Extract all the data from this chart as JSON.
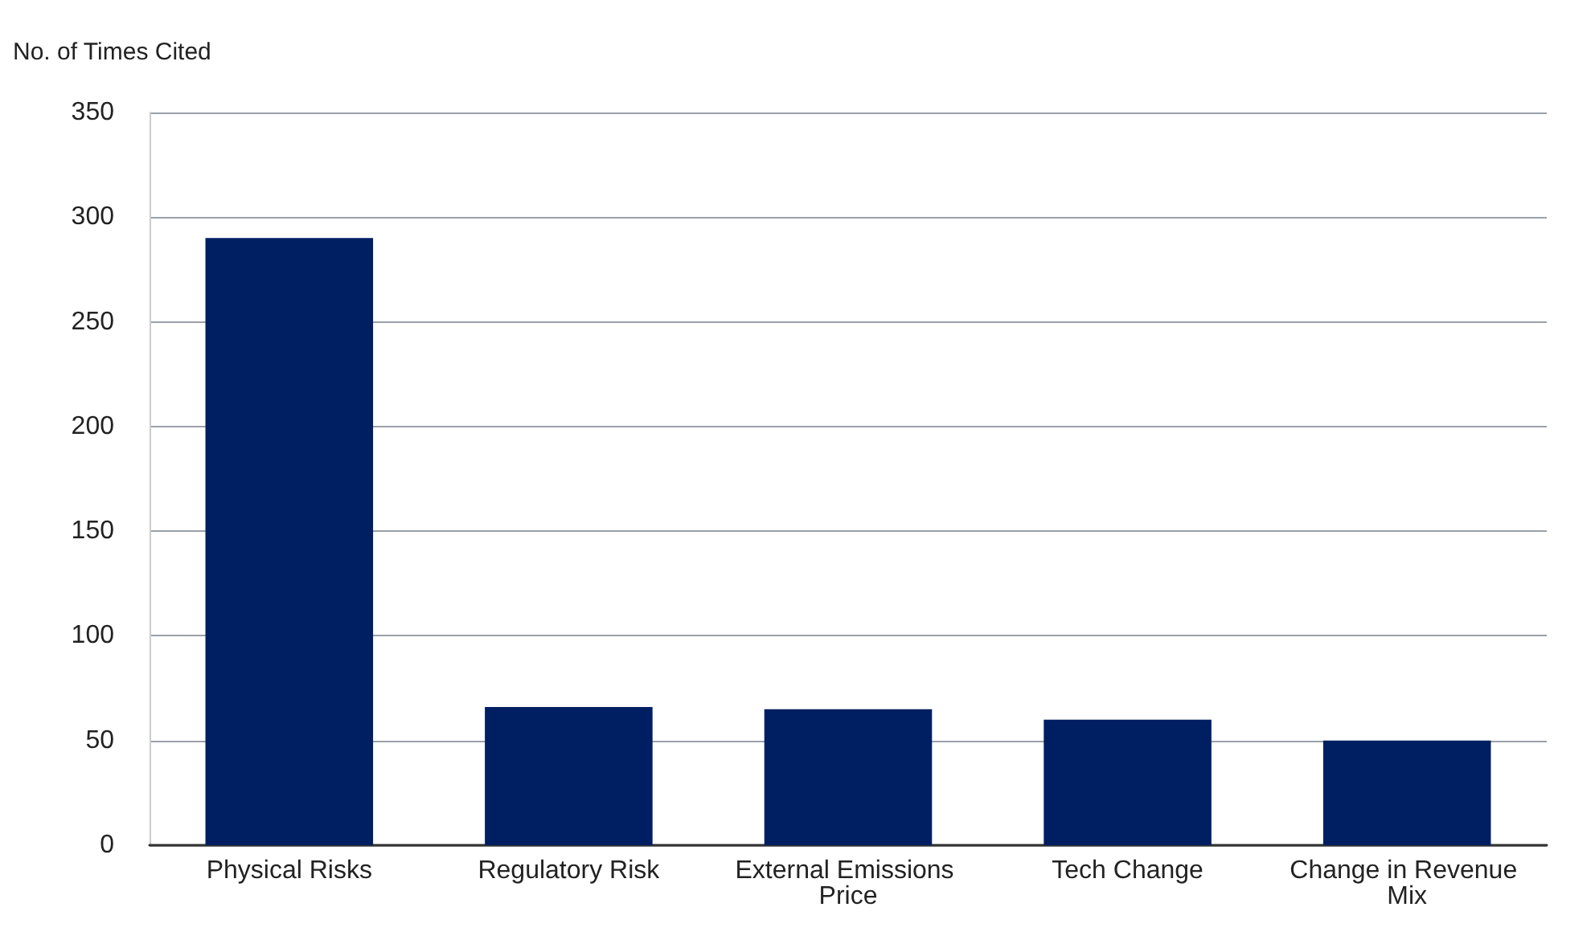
{
  "chart_data": {
    "type": "bar",
    "ylabel": "No. of Times Cited",
    "categories": [
      "Physical Risks",
      "Regulatory Risk",
      "External Emissions Price",
      "Tech Change",
      "Change in Revenue Mix"
    ],
    "values": [
      290,
      66,
      65,
      60,
      50
    ],
    "color": "#001f62",
    "ylim": [
      0,
      350
    ],
    "yticks": [
      0,
      50,
      100,
      150,
      200,
      250,
      300,
      350
    ],
    "grid": "y"
  }
}
